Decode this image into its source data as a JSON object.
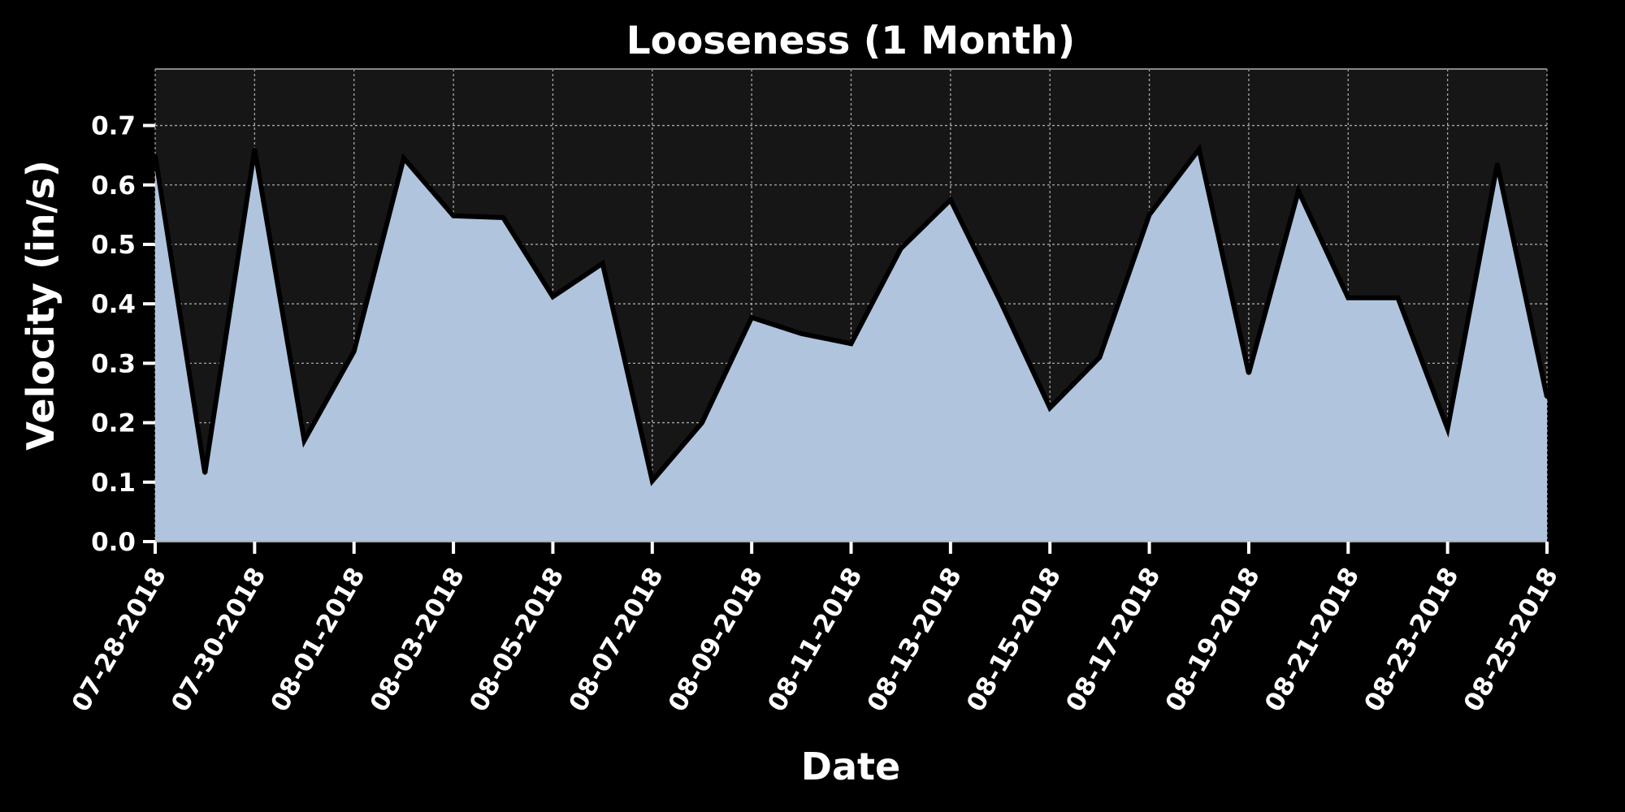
{
  "chart_data": {
    "type": "area",
    "title": "Looseness (1 Month)",
    "xlabel": "Date",
    "ylabel": "Velocity (in/s)",
    "x": [
      "07-28-2018",
      "07-29-2018",
      "07-30-2018",
      "07-31-2018",
      "08-01-2018",
      "08-02-2018",
      "08-03-2018",
      "08-04-2018",
      "08-05-2018",
      "08-06-2018",
      "08-07-2018",
      "08-08-2018",
      "08-09-2018",
      "08-10-2018",
      "08-11-2018",
      "08-12-2018",
      "08-13-2018",
      "08-14-2018",
      "08-15-2018",
      "08-16-2018",
      "08-17-2018",
      "08-18-2018",
      "08-19-2018",
      "08-20-2018",
      "08-21-2018",
      "08-22-2018",
      "08-23-2018",
      "08-24-2018",
      "08-25-2018"
    ],
    "values": [
      0.65,
      0.115,
      0.66,
      0.17,
      0.32,
      0.645,
      0.548,
      0.545,
      0.412,
      0.468,
      0.102,
      0.2,
      0.377,
      0.35,
      0.333,
      0.493,
      0.575,
      0.405,
      0.225,
      0.31,
      0.55,
      0.66,
      0.283,
      0.59,
      0.41,
      0.41,
      0.19,
      0.635,
      0.243
    ],
    "x_tick_labels": [
      "07-28-2018",
      "07-30-2018",
      "08-01-2018",
      "08-03-2018",
      "08-05-2018",
      "08-07-2018",
      "08-09-2018",
      "08-11-2018",
      "08-13-2018",
      "08-15-2018",
      "08-17-2018",
      "08-19-2018",
      "08-21-2018",
      "08-23-2018",
      "08-25-2018"
    ],
    "y_ticks": [
      0.0,
      0.1,
      0.2,
      0.3,
      0.4,
      0.5,
      0.6,
      0.7
    ],
    "y_tick_labels": [
      "0.0",
      "0.1",
      "0.2",
      "0.3",
      "0.4",
      "0.5",
      "0.6",
      "0.7"
    ],
    "ylim": [
      0,
      0.795
    ],
    "grid": true,
    "colors": {
      "background": "#000000",
      "plot_background": "#161616",
      "fill": "#b0c4de",
      "line": "#000000",
      "text": "#ffffff"
    }
  }
}
